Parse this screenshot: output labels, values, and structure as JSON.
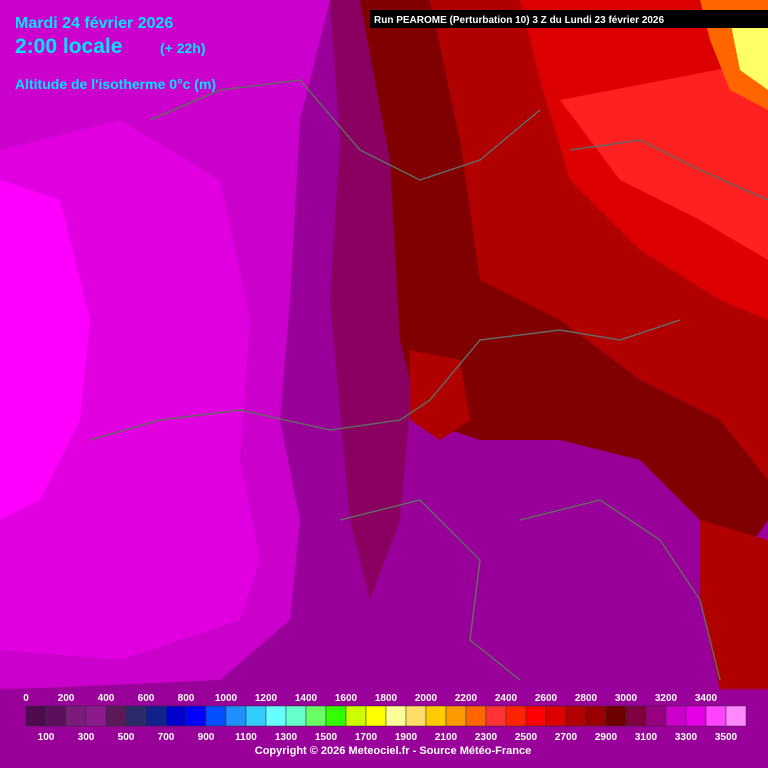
{
  "header": {
    "date": "Mardi 24 février 2026",
    "time": "2:00 locale",
    "lead": "(+ 22h)",
    "parameter": "Altitude de l'isotherme 0°c (m)",
    "run": "Run PEAROME (Perturbation 10) 3 Z du Lundi 23 février 2026"
  },
  "legend": {
    "ticks": [
      0,
      100,
      200,
      300,
      400,
      500,
      600,
      700,
      800,
      900,
      1000,
      1100,
      1200,
      1300,
      1400,
      1500,
      1600,
      1700,
      1800,
      1900,
      2000,
      2100,
      2200,
      2300,
      2400,
      2500,
      2600,
      2700,
      2800,
      2900,
      3000,
      3100,
      3200,
      3300,
      3400,
      3500
    ],
    "colors": [
      "#4d0a4d",
      "#5c0f5c",
      "#7a1a7a",
      "#8c1a8c",
      "#5a1a5a",
      "#2b2b6b",
      "#10208c",
      "#0000cc",
      "#0000ff",
      "#0050ff",
      "#1e90ff",
      "#33ccff",
      "#66ffff",
      "#66ffcc",
      "#66ff66",
      "#33ff00",
      "#ccff00",
      "#ffff00",
      "#ffff99",
      "#ffdd66",
      "#ffcc00",
      "#ff9900",
      "#ff6600",
      "#ff3333",
      "#ff2200",
      "#ff0000",
      "#dd0000",
      "#b00000",
      "#990000",
      "#700000",
      "#800040",
      "#990080",
      "#cc00cc",
      "#e600e6",
      "#ff44ff",
      "#ff88ff"
    ]
  },
  "footer": {
    "copyright": "Copyright © 2026 Meteociel.fr - Source Météo-France"
  }
}
